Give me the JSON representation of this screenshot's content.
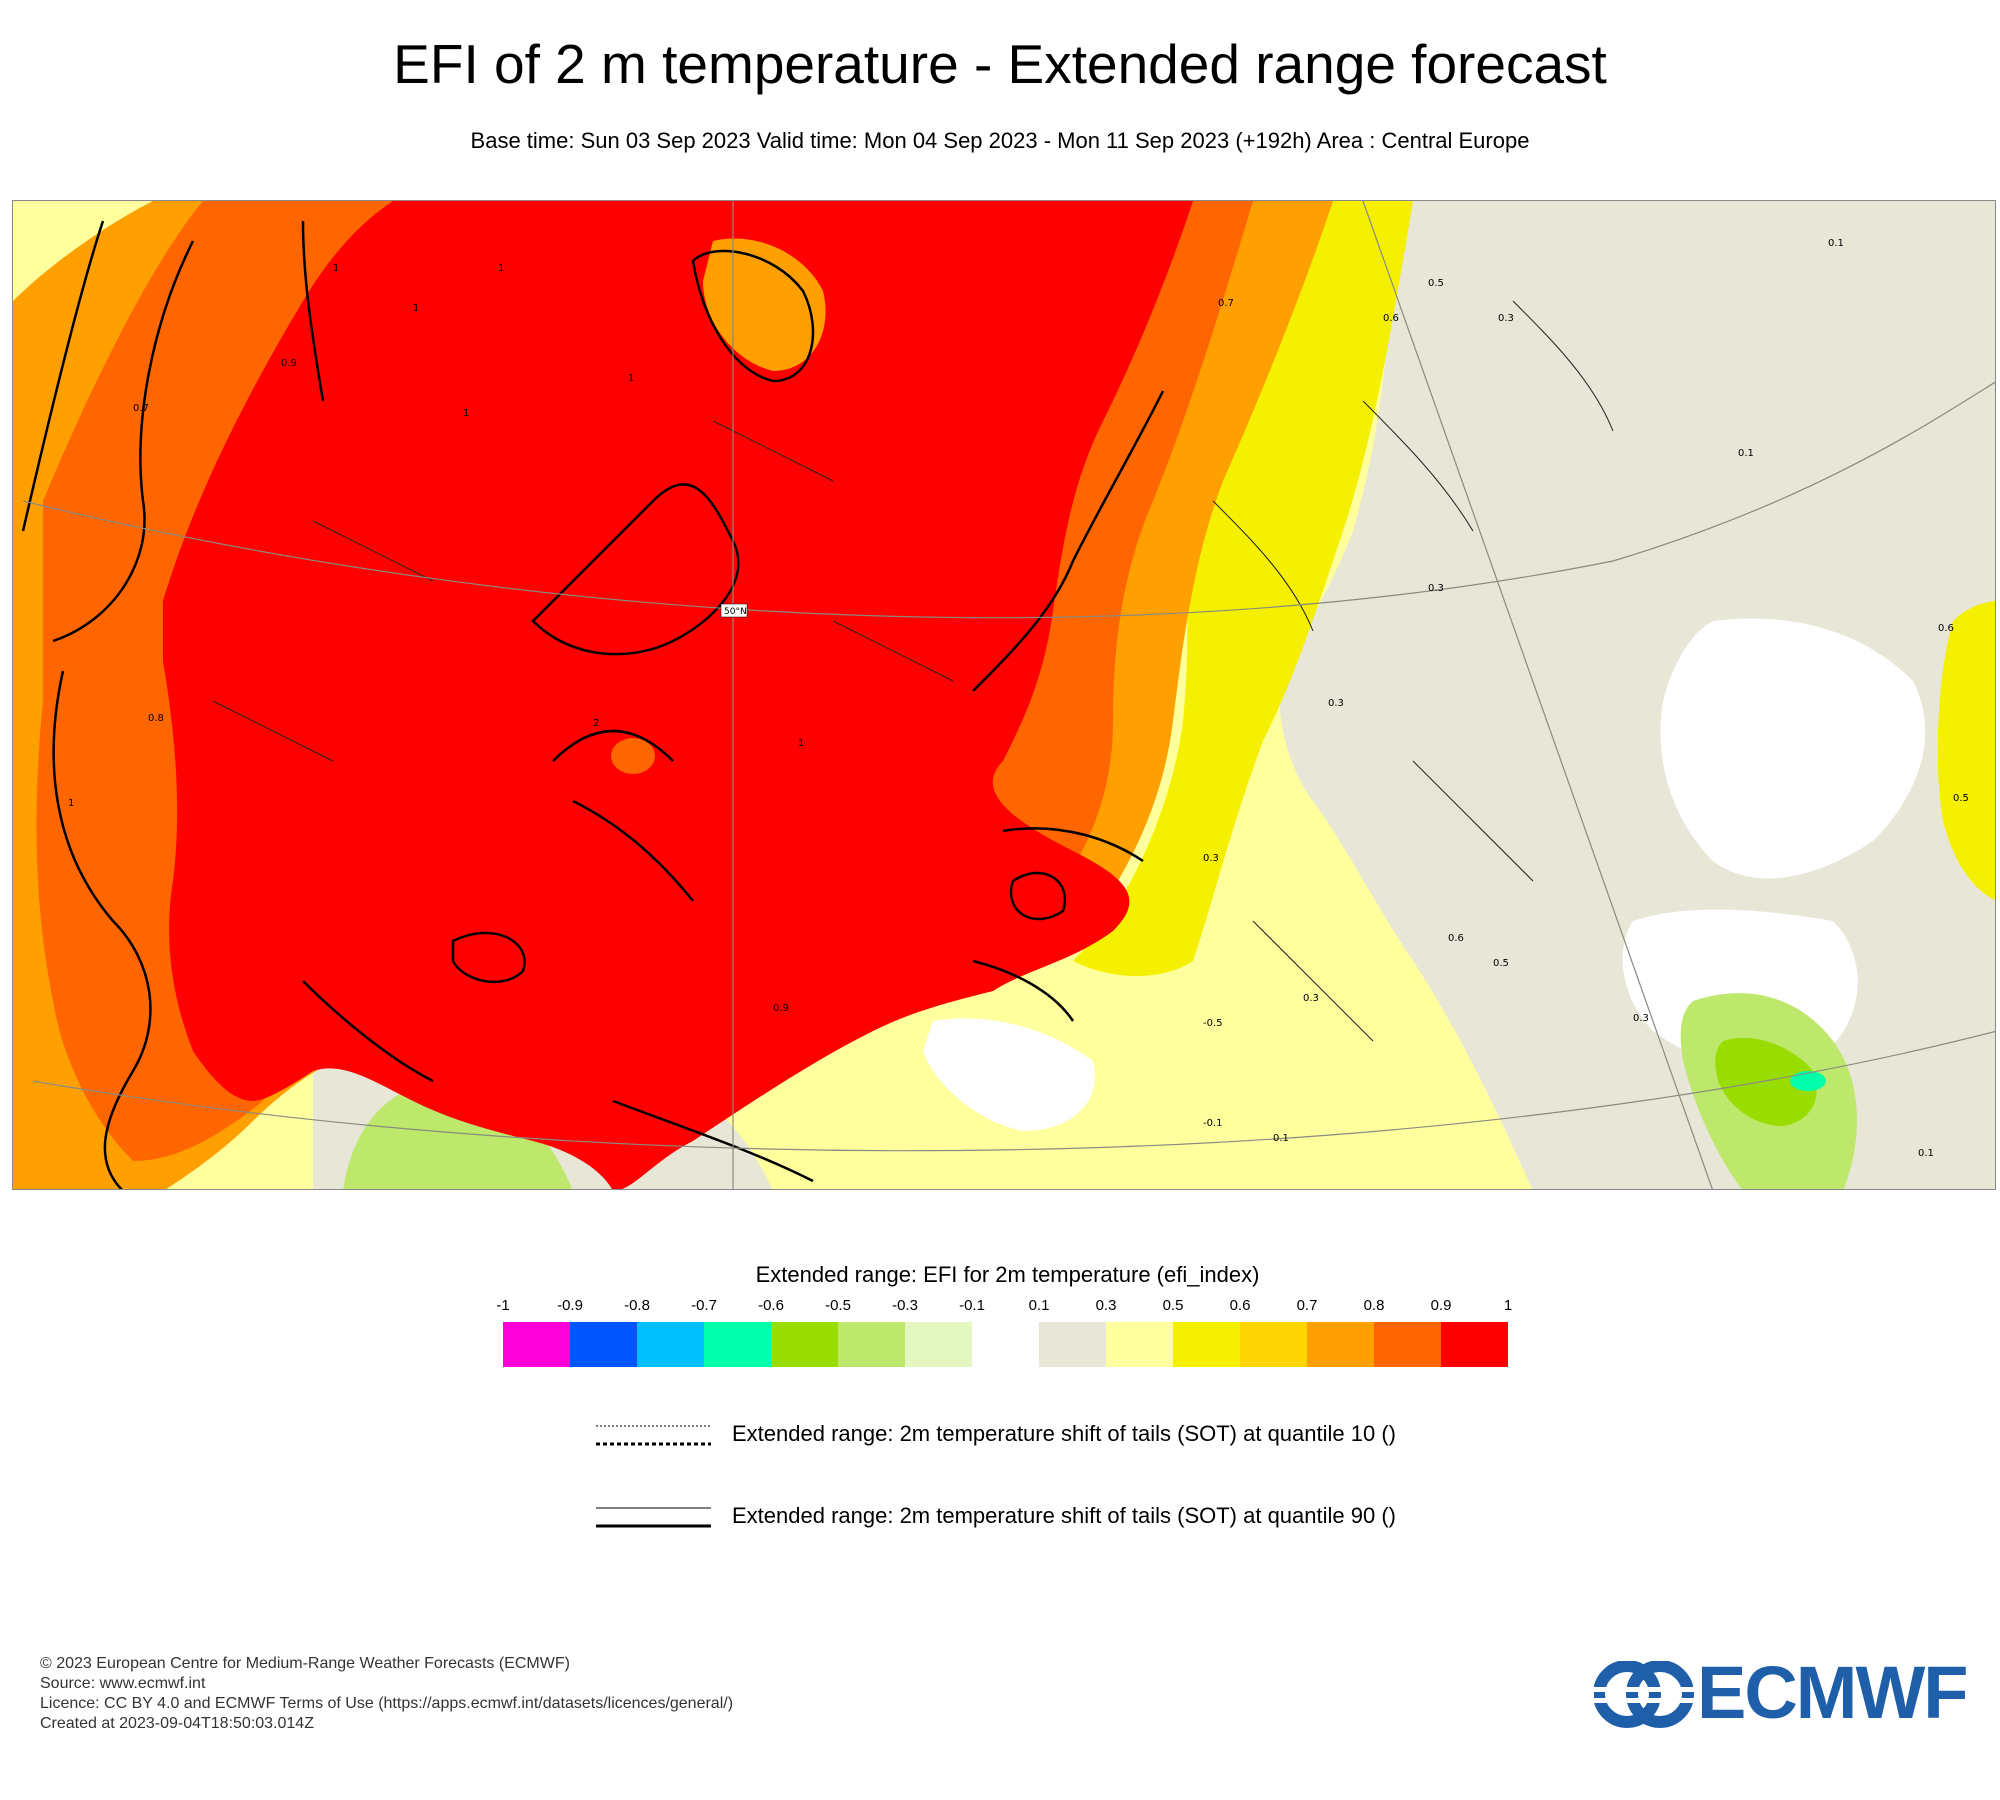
{
  "header": {
    "title": "EFI of 2 m temperature - Extended range forecast",
    "subtitle": "Base time: Sun 03 Sep 2023 Valid time: Mon 04 Sep 2023 - Mon 11 Sep 2023 (+192h) Area : Central Europe"
  },
  "map": {
    "region": "Central Europe",
    "graticule_label": "50°N",
    "contour_labels": [
      "1",
      "1",
      "1",
      "1",
      "0.9",
      "0.7",
      "1",
      "0.8",
      "1",
      "1",
      "2",
      "0.9",
      "0.7",
      "0.6",
      "0.5",
      "0.3",
      "0.3",
      "0.3",
      "0.3",
      "0.3",
      "0.6",
      "0.5",
      "-0.5",
      "-0.1",
      "0.1",
      "0.6",
      "0.5",
      "0.3",
      "0.1",
      "0.1",
      "0.1"
    ]
  },
  "legend": {
    "title": "Extended range: EFI for 2m temperature (efi_index)",
    "ticks": [
      "-1",
      "-0.9",
      "-0.8",
      "-0.7",
      "-0.6",
      "-0.5",
      "-0.3",
      "-0.1",
      "0.1",
      "0.3",
      "0.5",
      "0.6",
      "0.7",
      "0.8",
      "0.9",
      "1"
    ],
    "colors": [
      "#ff00d8",
      "#0055ff",
      "#00bfff",
      "#00ffaa",
      "#99dd00",
      "#bde86c",
      "#e5f7c0",
      "#ffffff",
      "#e8e6d6",
      "#ffff9e",
      "#f4f000",
      "#ffd500",
      "#ffa000",
      "#ff6600",
      "#ff0000"
    ],
    "sot_q10": "Extended range: 2m temperature shift of tails (SOT) at quantile 10 ()",
    "sot_q90": "Extended range: 2m temperature shift of tails (SOT) at quantile 90 ()"
  },
  "footer": {
    "copyright": "© 2023 European Centre for Medium-Range Weather Forecasts (ECMWF)",
    "source": "Source: www.ecmwf.int",
    "licence": "Licence: CC BY 4.0 and ECMWF Terms of Use (https://apps.ecmwf.int/datasets/licences/general/)",
    "created": "Created at 2023-09-04T18:50:03.014Z",
    "logo_text": "ECMWF"
  }
}
